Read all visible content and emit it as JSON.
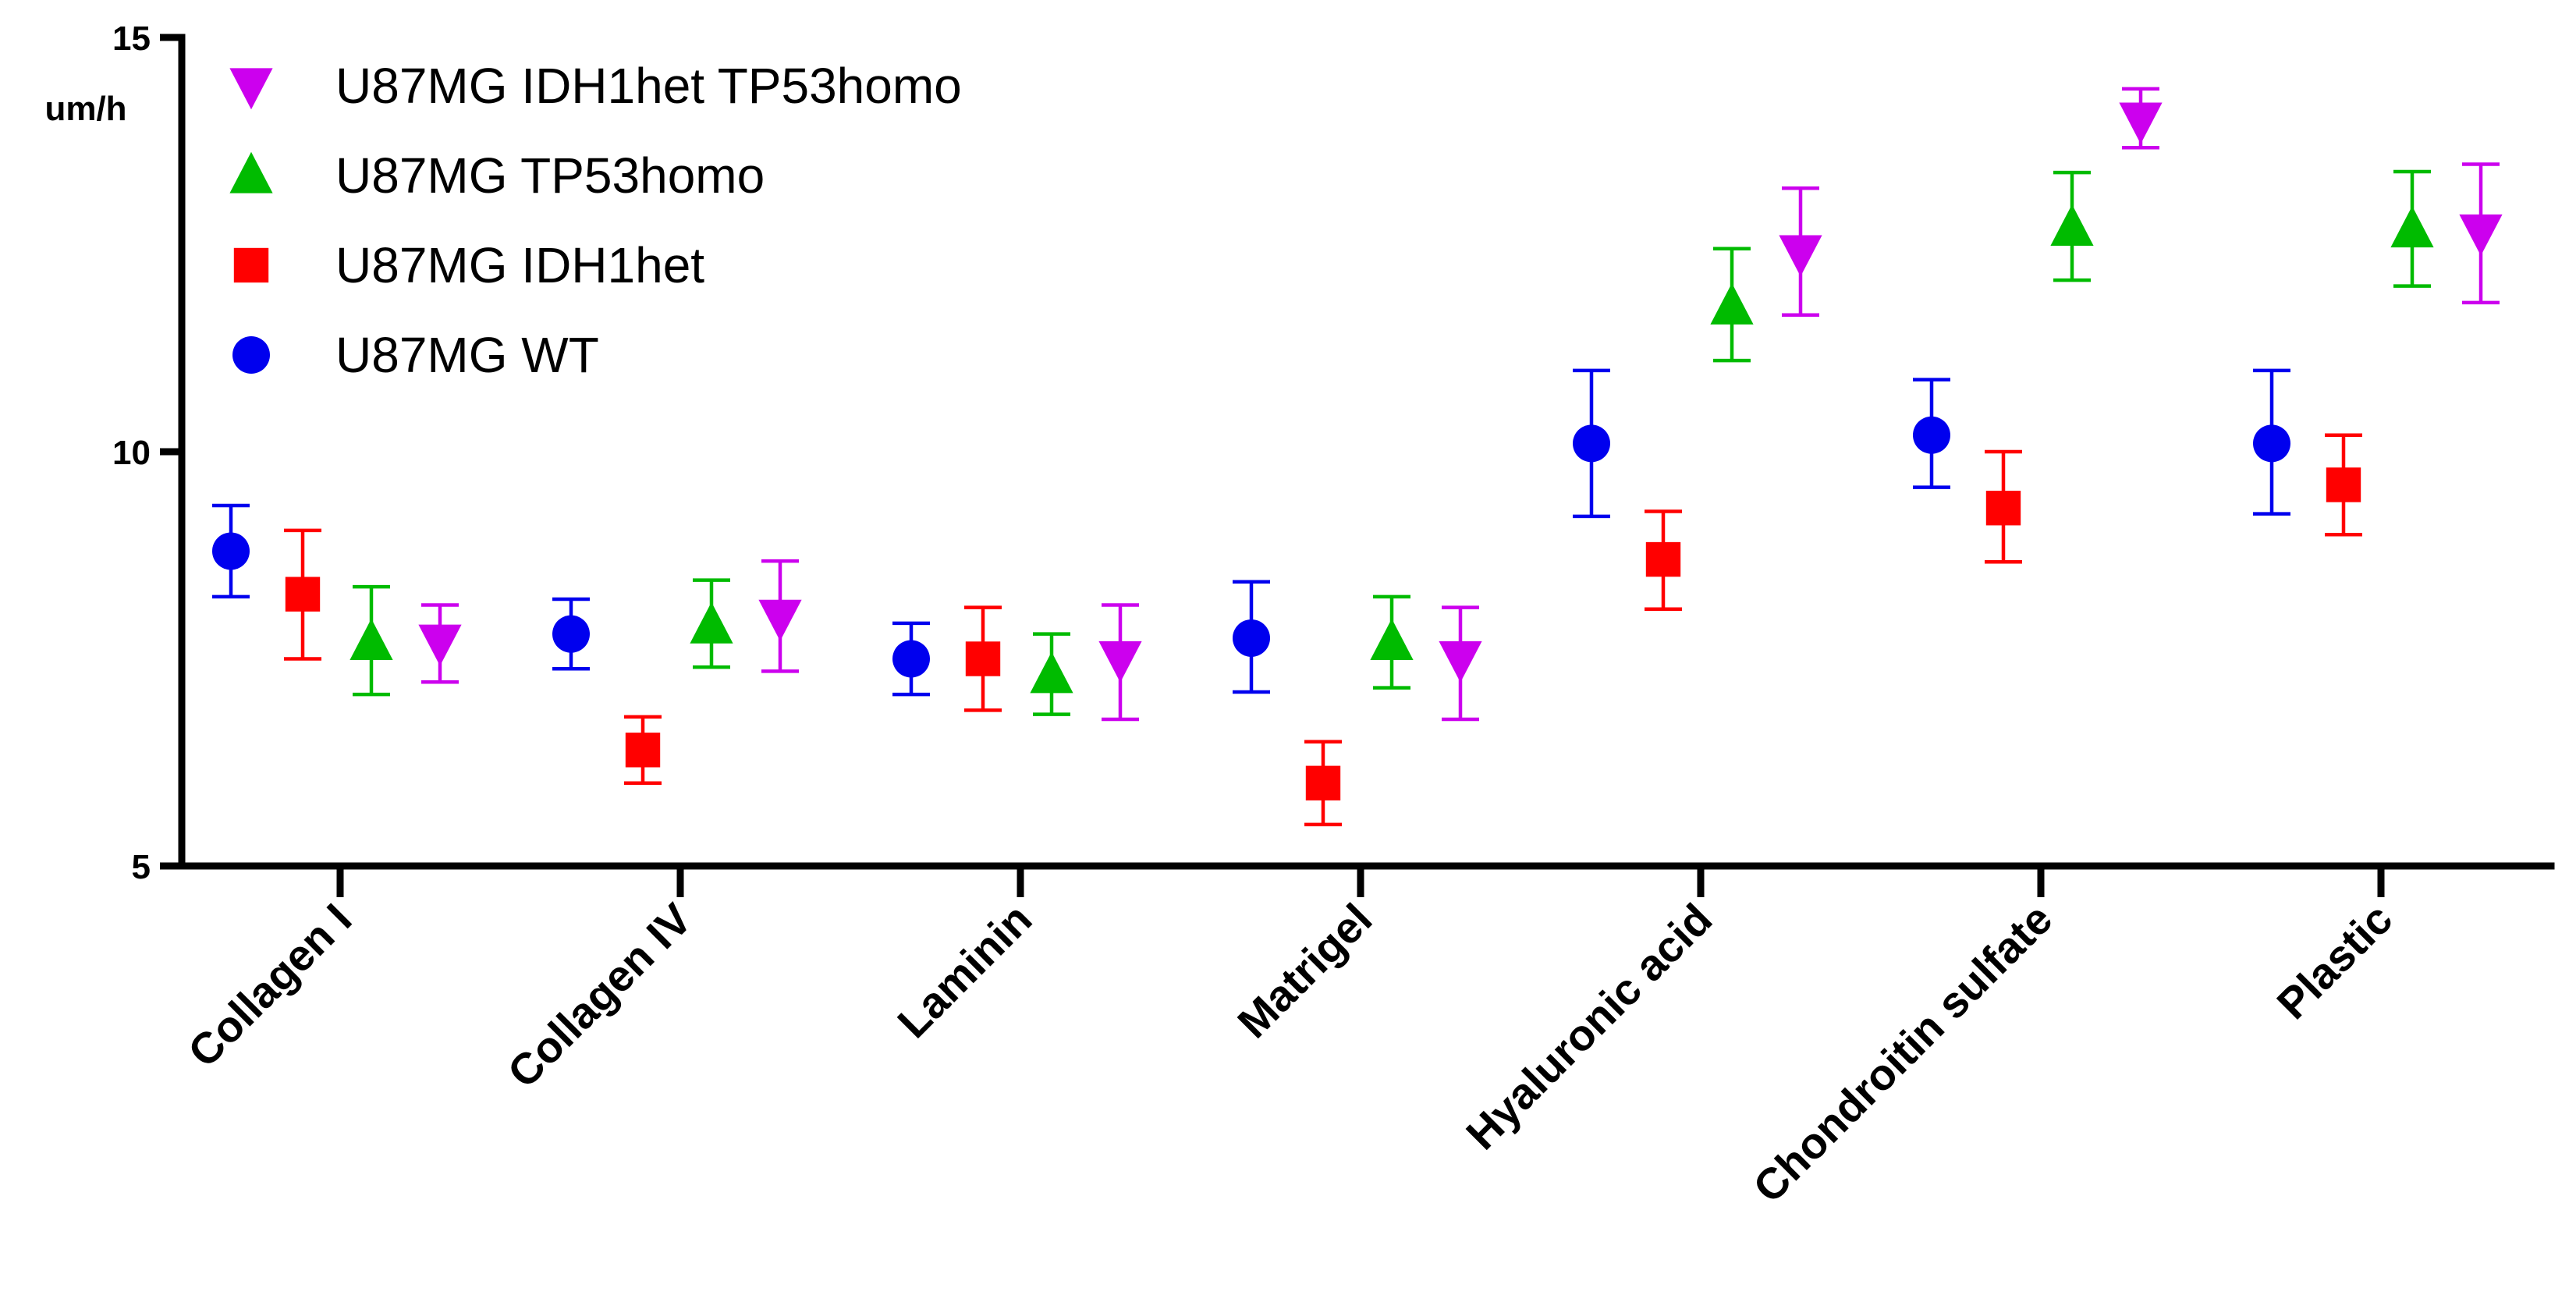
{
  "chart_data": {
    "type": "scatter",
    "ylabel": "um/h",
    "ylim": [
      5,
      15
    ],
    "yticks": [
      "5",
      "10",
      "15"
    ],
    "categories": [
      "Collagen I",
      "Collagen IV",
      "Laminin",
      "Matrigel",
      "Hyaluronic acid",
      "Chondroitin sulfate",
      "Plastic"
    ],
    "legend_position": "top-left",
    "series": [
      {
        "name": "U87MG WT",
        "marker": "circle",
        "color": "#0000ee",
        "values": [
          8.8,
          7.8,
          7.5,
          7.75,
          10.1,
          10.2,
          10.1
        ],
        "err_low": [
          8.25,
          7.38,
          7.07,
          7.1,
          9.22,
          9.57,
          9.25
        ],
        "err_high": [
          9.35,
          8.22,
          7.93,
          8.43,
          10.98,
          10.87,
          10.98
        ]
      },
      {
        "name": "U87MG IDH1het",
        "marker": "square",
        "color": "#ff0000",
        "values": [
          8.28,
          6.4,
          7.5,
          6.0,
          8.7,
          9.32,
          9.6
        ],
        "err_low": [
          7.5,
          6.0,
          6.88,
          5.5,
          8.1,
          8.67,
          9.0
        ],
        "err_high": [
          9.05,
          6.8,
          8.12,
          6.5,
          9.28,
          10.0,
          10.2
        ]
      },
      {
        "name": "U87MG TP53homo",
        "marker": "triangle-up",
        "color": "#00bb00",
        "values": [
          7.7,
          7.9,
          7.3,
          7.7,
          11.75,
          12.7,
          12.68
        ],
        "err_low": [
          7.07,
          7.4,
          6.83,
          7.15,
          11.1,
          12.07,
          12.0
        ],
        "err_high": [
          8.37,
          8.45,
          7.8,
          8.25,
          12.45,
          13.37,
          13.38
        ]
      },
      {
        "name": "U87MG IDH1het TP53homo",
        "marker": "triangle-down",
        "color": "#cc00ee",
        "values": [
          7.7,
          8.0,
          7.5,
          7.5,
          12.4,
          14.0,
          12.65
        ],
        "err_low": [
          7.22,
          7.35,
          6.77,
          6.77,
          11.65,
          13.67,
          11.8
        ],
        "err_high": [
          8.15,
          8.68,
          8.15,
          8.12,
          13.18,
          14.38,
          13.47
        ]
      }
    ]
  }
}
